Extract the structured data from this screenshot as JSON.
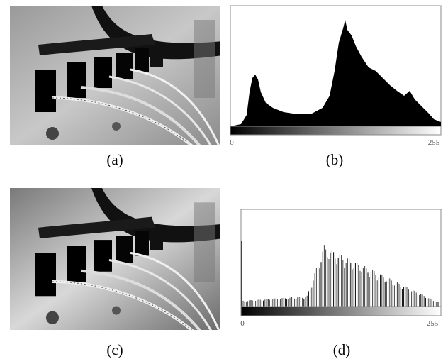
{
  "figure": {
    "panels": [
      {
        "caption": "(a)"
      },
      {
        "caption": "(b)",
        "axis_labels": [
          "0",
          "255"
        ]
      },
      {
        "caption": "(c)"
      },
      {
        "caption": "(d)",
        "axis_labels": [
          "0",
          "255"
        ]
      }
    ]
  }
}
